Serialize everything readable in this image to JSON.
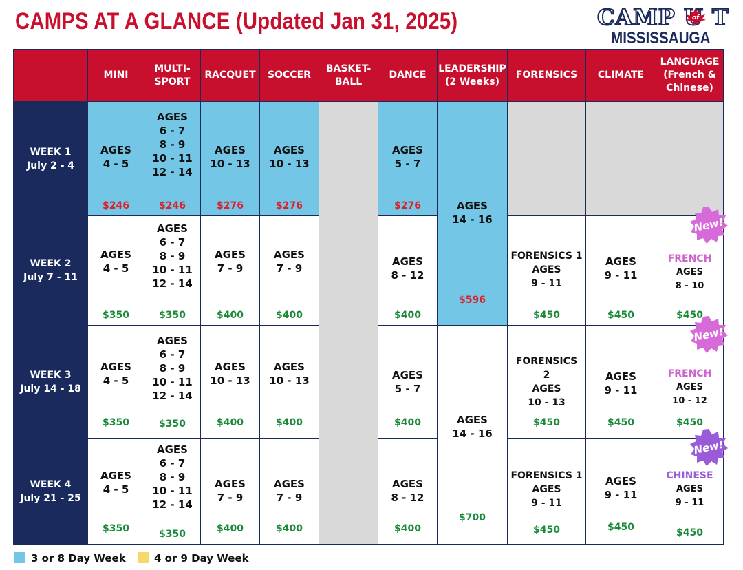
{
  "title": "CAMPS AT A GLANCE (Updated Jan 31, 2025)",
  "logo": {
    "top": "CAMP U T",
    "of_text": "of",
    "bottom": "MISSISSAUGA"
  },
  "headers": [
    "MINI",
    "MULTI-\nSPORT",
    "RACQUET",
    "SOCCER",
    "BASKET-\nBALL",
    "DANCE",
    "LEADERSHIP\n(2 Weeks)",
    "FORENSICS",
    "CLIMATE",
    "LANGUAGE\n(French &\nChinese)"
  ],
  "weeks": [
    {
      "label": "WEEK 1\nJuly 2 - 4"
    },
    {
      "label": "WEEK 2\nJuly 7 - 11"
    },
    {
      "label": "WEEK 3\nJuly 14 - 18"
    },
    {
      "label": "WEEK 4\nJuly 21 - 25"
    }
  ],
  "cells": {
    "w1": {
      "mini": {
        "ages": "AGES\n4 - 5",
        "price": "$246"
      },
      "multi": {
        "ages": "AGES\n6 - 7\n8 - 9\n10 - 11\n12 - 14",
        "price": "$246"
      },
      "racquet": {
        "ages": "AGES\n10 - 13",
        "price": "$276"
      },
      "soccer": {
        "ages": "AGES\n10 - 13",
        "price": "$276"
      },
      "dance": {
        "ages": "AGES\n5 - 7",
        "price": "$276"
      }
    },
    "leadership1": {
      "ages": "AGES\n14 - 16",
      "price": "$596"
    },
    "w2": {
      "mini": {
        "ages": "AGES\n4 - 5",
        "price": "$350"
      },
      "multi": {
        "ages": "AGES\n6 - 7\n8 - 9\n10 - 11\n12 - 14",
        "price": "$350"
      },
      "racquet": {
        "ages": "AGES\n7 - 9",
        "price": "$400"
      },
      "soccer": {
        "ages": "AGES\n7 - 9",
        "price": "$400"
      },
      "dance": {
        "ages": "AGES\n8 - 12",
        "price": "$400"
      },
      "forensics": {
        "ages": "FORENSICS 1\nAGES\n9 - 11",
        "price": "$450"
      },
      "climate": {
        "ages": "AGES\n9 - 11",
        "price": "$450"
      },
      "language": {
        "name": "FRENCH",
        "ages": "AGES\n8 - 10",
        "price": "$450",
        "badge": "New!"
      }
    },
    "w3": {
      "mini": {
        "ages": "AGES\n4 - 5",
        "price": "$350"
      },
      "multi": {
        "ages": "AGES\n6 - 7\n8 - 9\n10 - 11\n12 - 14",
        "price": "$350"
      },
      "racquet": {
        "ages": "AGES\n10 - 13",
        "price": "$400"
      },
      "soccer": {
        "ages": "AGES\n10 - 13",
        "price": "$400"
      },
      "dance": {
        "ages": "AGES\n5 - 7",
        "price": "$400"
      },
      "forensics": {
        "ages": "FORENSICS\n2\nAGES\n10 - 13",
        "price": "$450"
      },
      "climate": {
        "ages": "AGES\n9 - 11",
        "price": "$450"
      },
      "language": {
        "name": "FRENCH",
        "ages": "AGES\n10 - 12",
        "price": "$450",
        "badge": "New!"
      }
    },
    "leadership2": {
      "ages": "AGES\n14 - 16",
      "price": "$700"
    },
    "w4": {
      "mini": {
        "ages": "AGES\n4 - 5",
        "price": "$350"
      },
      "multi": {
        "ages": "AGES\n6 - 7\n8 - 9\n10 - 11\n12 - 14",
        "price": "$350"
      },
      "racquet": {
        "ages": "AGES\n7 - 9",
        "price": "$400"
      },
      "soccer": {
        "ages": "AGES\n7 - 9",
        "price": "$400"
      },
      "dance": {
        "ages": "AGES\n8 - 12",
        "price": "$400"
      },
      "forensics": {
        "ages": "FORENSICS 1\nAGES\n9 - 11",
        "price": "$450"
      },
      "climate": {
        "ages": "AGES\n9 - 11",
        "price": "$450"
      },
      "language": {
        "name": "CHINESE",
        "ages": "AGES\n9 - 11",
        "price": "$450",
        "badge": "New!"
      }
    }
  },
  "colors": {
    "header_red": "#c8102e",
    "week_navy": "#1b2a5c",
    "short_week_blue": "#73c6e6",
    "long_week_yellow": "#f7d96b",
    "empty_gray": "#d9d9d9",
    "price_green": "#1a8a3a",
    "price_red": "#d8232a",
    "french_pink": "#cc66cc",
    "chinese_purple": "#9a5bd8",
    "badge_pink": "#d76ad9",
    "badge_purple": "#9a5bd8"
  },
  "legend": [
    {
      "label": "3 or 8 Day Week",
      "color": "#73c6e6"
    },
    {
      "label": "4 or 9 Day Week",
      "color": "#f7d96b"
    }
  ]
}
